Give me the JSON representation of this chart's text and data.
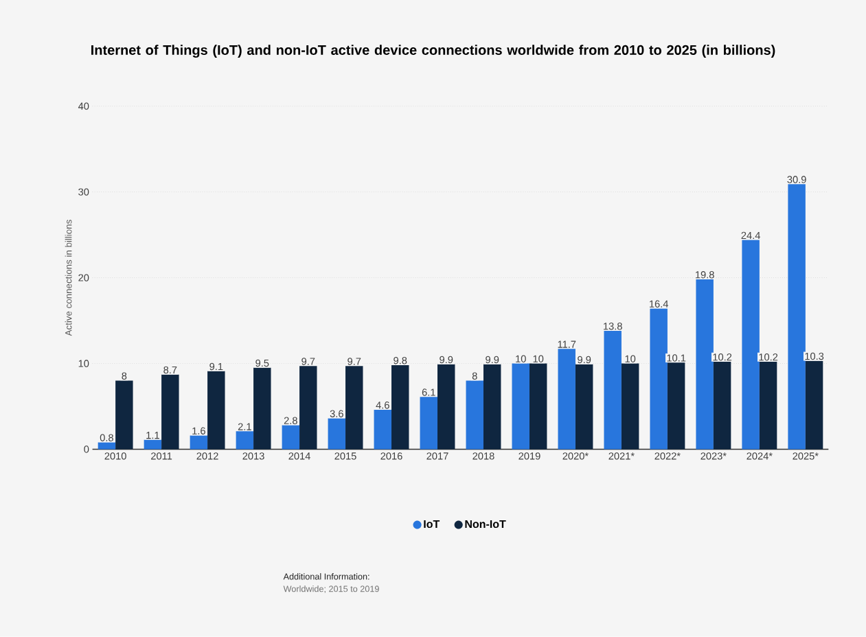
{
  "chart_data": {
    "type": "bar",
    "title": "Internet of Things (IoT) and non-IoT active device connections worldwide from 2010 to 2025 (in billions)",
    "ylabel": "Active connections in billions",
    "categories": [
      "2010",
      "2011",
      "2012",
      "2013",
      "2014",
      "2015",
      "2016",
      "2017",
      "2018",
      "2019",
      "2020*",
      "2021*",
      "2022*",
      "2023*",
      "2024*",
      "2025*"
    ],
    "series": [
      {
        "name": "IoT",
        "color": "#2876dd",
        "values": [
          0.8,
          1.1,
          1.6,
          2.1,
          2.8,
          3.6,
          4.6,
          6.1,
          8,
          10,
          11.7,
          13.8,
          16.4,
          19.8,
          24.4,
          30.9
        ]
      },
      {
        "name": "Non-IoT",
        "color": "#0f2640",
        "values": [
          8,
          8.7,
          9.1,
          9.5,
          9.7,
          9.7,
          9.8,
          9.9,
          9.9,
          10,
          9.9,
          10,
          10.1,
          10.2,
          10.2,
          10.3
        ]
      }
    ],
    "ylim": [
      0,
      40
    ],
    "yticks": [
      0,
      10,
      20,
      30,
      40
    ],
    "grid": "y",
    "legend": "bottom",
    "data_labels": true,
    "annotations": [
      "Additional Information:",
      "Worldwide; 2015 to 2019"
    ]
  }
}
